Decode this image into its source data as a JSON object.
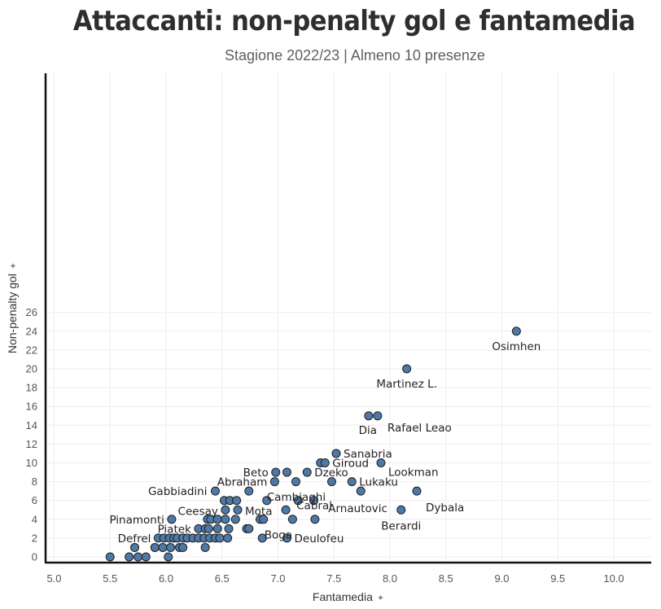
{
  "header": {
    "title": "Attaccanti: non-penalty gol e fantamedia",
    "subtitle": "Stagione 2022/23 | Almeno 10 presenze"
  },
  "colors": {
    "point_fill": "#4e79a7",
    "point_stroke": "#1f1f1f",
    "axis": "#111111",
    "grid": "#eeeeee"
  },
  "icons": {
    "axis_pin": "pin-icon"
  },
  "chart_data": {
    "type": "scatter",
    "title": "Attaccanti: non-penalty gol e fantamedia",
    "subtitle": "Stagione 2022/23 | Almeno 10 presenze",
    "xlabel": "Fantamedia",
    "ylabel": "Non-penalty gol",
    "xlim": [
      5.0,
      10.3
    ],
    "ylim": [
      -0.3,
      26.5
    ],
    "xticks": [
      "5.0",
      "5.5",
      "6.0",
      "6.5",
      "7.0",
      "7.5",
      "8.0",
      "8.5",
      "9.0",
      "9.5",
      "10.0"
    ],
    "yticks": [
      "0",
      "2",
      "4",
      "6",
      "8",
      "10",
      "12",
      "14",
      "16",
      "18",
      "20",
      "22",
      "24",
      "26"
    ],
    "grid": true,
    "points": [
      {
        "x": 9.13,
        "y": 24,
        "label": "Osimhen"
      },
      {
        "x": 8.15,
        "y": 20,
        "label": "Martinez L."
      },
      {
        "x": 7.81,
        "y": 15,
        "label": "Dia"
      },
      {
        "x": 7.89,
        "y": 15,
        "label": "Rafael Leao"
      },
      {
        "x": 7.52,
        "y": 11,
        "label": "Sanabria"
      },
      {
        "x": 7.38,
        "y": 10
      },
      {
        "x": 7.42,
        "y": 10,
        "label": "Giroud"
      },
      {
        "x": 7.92,
        "y": 10,
        "label": "Lookman"
      },
      {
        "x": 6.98,
        "y": 9,
        "label": "Beto"
      },
      {
        "x": 7.08,
        "y": 9
      },
      {
        "x": 7.26,
        "y": 9,
        "label": "Dzeko"
      },
      {
        "x": 6.97,
        "y": 8,
        "label": "Abraham"
      },
      {
        "x": 7.16,
        "y": 8
      },
      {
        "x": 7.48,
        "y": 8
      },
      {
        "x": 7.66,
        "y": 8,
        "label": "Lukaku"
      },
      {
        "x": 6.44,
        "y": 7,
        "label": "Gabbiadini"
      },
      {
        "x": 6.74,
        "y": 7,
        "label": "Cambiaghi"
      },
      {
        "x": 7.74,
        "y": 7,
        "label": "Arnautovic"
      },
      {
        "x": 8.24,
        "y": 7,
        "label": "Dybala"
      },
      {
        "x": 6.52,
        "y": 6
      },
      {
        "x": 6.57,
        "y": 6
      },
      {
        "x": 6.63,
        "y": 6
      },
      {
        "x": 6.9,
        "y": 6
      },
      {
        "x": 7.18,
        "y": 6
      },
      {
        "x": 7.32,
        "y": 6
      },
      {
        "x": 6.53,
        "y": 5,
        "label": "Ceesay"
      },
      {
        "x": 6.64,
        "y": 5,
        "label": "Mota"
      },
      {
        "x": 7.07,
        "y": 5,
        "label": "Cabral"
      },
      {
        "x": 8.1,
        "y": 5,
        "label": "Berardi"
      },
      {
        "x": 6.05,
        "y": 4,
        "label": "Pinamonti"
      },
      {
        "x": 6.37,
        "y": 4
      },
      {
        "x": 6.4,
        "y": 4
      },
      {
        "x": 6.46,
        "y": 4
      },
      {
        "x": 6.53,
        "y": 4
      },
      {
        "x": 6.62,
        "y": 4
      },
      {
        "x": 6.84,
        "y": 4
      },
      {
        "x": 6.87,
        "y": 4
      },
      {
        "x": 7.13,
        "y": 4
      },
      {
        "x": 7.33,
        "y": 4
      },
      {
        "x": 6.29,
        "y": 3,
        "label": "Piatek"
      },
      {
        "x": 6.35,
        "y": 3
      },
      {
        "x": 6.38,
        "y": 3
      },
      {
        "x": 6.46,
        "y": 3
      },
      {
        "x": 6.56,
        "y": 3
      },
      {
        "x": 6.72,
        "y": 3
      },
      {
        "x": 6.74,
        "y": 3,
        "label": "Boga"
      },
      {
        "x": 5.93,
        "y": 2,
        "label": "Defrel"
      },
      {
        "x": 5.98,
        "y": 2
      },
      {
        "x": 6.03,
        "y": 2
      },
      {
        "x": 6.07,
        "y": 2
      },
      {
        "x": 6.1,
        "y": 2
      },
      {
        "x": 6.15,
        "y": 2
      },
      {
        "x": 6.19,
        "y": 2
      },
      {
        "x": 6.24,
        "y": 2
      },
      {
        "x": 6.29,
        "y": 2
      },
      {
        "x": 6.34,
        "y": 2
      },
      {
        "x": 6.39,
        "y": 2
      },
      {
        "x": 6.44,
        "y": 2
      },
      {
        "x": 6.48,
        "y": 2
      },
      {
        "x": 6.55,
        "y": 2
      },
      {
        "x": 6.86,
        "y": 2
      },
      {
        "x": 7.08,
        "y": 2,
        "label": "Deulofeu"
      },
      {
        "x": 5.72,
        "y": 1
      },
      {
        "x": 5.9,
        "y": 1
      },
      {
        "x": 5.97,
        "y": 1
      },
      {
        "x": 6.04,
        "y": 1
      },
      {
        "x": 6.12,
        "y": 1
      },
      {
        "x": 6.15,
        "y": 1
      },
      {
        "x": 6.35,
        "y": 1
      },
      {
        "x": 5.5,
        "y": 0
      },
      {
        "x": 5.67,
        "y": 0
      },
      {
        "x": 5.75,
        "y": 0
      },
      {
        "x": 5.82,
        "y": 0
      },
      {
        "x": 6.02,
        "y": 0
      }
    ]
  }
}
